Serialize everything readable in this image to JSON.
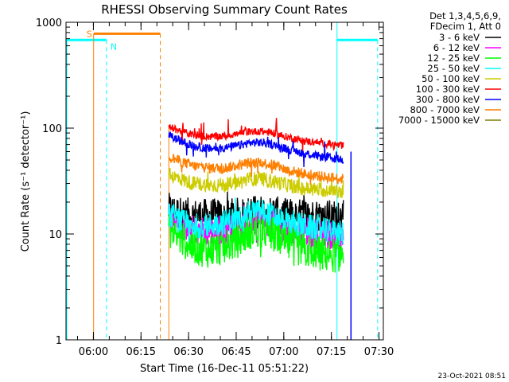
{
  "chart_data": {
    "type": "line",
    "title": "RHESSI Observing Summary Count Rates",
    "xlabel": "Start Time (16-Dec-11 05:51:22)",
    "ylabel": "Count Rate (s⁻¹ detector⁻¹)",
    "y_scale": "log",
    "ylim": [
      1,
      1000
    ],
    "xlim_minutes_after_start": [
      0,
      100
    ],
    "x_ticks": [
      {
        "label": "06:00",
        "value": 8.63
      },
      {
        "label": "06:15",
        "value": 23.63
      },
      {
        "label": "06:30",
        "value": 38.63
      },
      {
        "label": "06:45",
        "value": 53.63
      },
      {
        "label": "07:00",
        "value": 68.63
      },
      {
        "label": "07:15",
        "value": 83.63
      },
      {
        "label": "07:30",
        "value": 98.63
      }
    ],
    "y_ticks": [
      {
        "label": "1",
        "value": 1
      },
      {
        "label": "10",
        "value": 10
      },
      {
        "label": "100",
        "value": 100
      },
      {
        "label": "1000",
        "value": 1000
      }
    ],
    "legend_header": [
      "Det 1,3,4,5,6,9,",
      "FDecim 1, Att 0"
    ],
    "legend_position": "right",
    "data_x": [
      32.4,
      35,
      40,
      45,
      50,
      55,
      58,
      62,
      65,
      70,
      75,
      80,
      84,
      87.4
    ],
    "series": [
      {
        "name": "3 - 6 keV",
        "color": "#000000",
        "values": [
          17,
          16,
          15,
          15,
          15,
          15.5,
          16,
          16.5,
          16,
          15,
          15,
          15,
          14.5,
          14.5
        ],
        "noise": 0.16
      },
      {
        "name": "6 - 12 keV",
        "color": "#ff00ff",
        "values": [
          14,
          12.5,
          11,
          10.5,
          11,
          12,
          13,
          13.5,
          12.5,
          11,
          10.5,
          10,
          9.8,
          9.5
        ],
        "noise": 0.14
      },
      {
        "name": "12 - 25 keV",
        "color": "#00ff00",
        "values": [
          11,
          9.5,
          7.5,
          7,
          7.5,
          9,
          10.5,
          11,
          10,
          8,
          7,
          6.5,
          6.3,
          6.3
        ],
        "noise": 0.17
      },
      {
        "name": "25 - 50 keV",
        "color": "#00ffff",
        "values": [
          15,
          13.5,
          12,
          12,
          13,
          14.5,
          16,
          16.5,
          15,
          13,
          12,
          11,
          10.5,
          10
        ],
        "noise": 0.12
      },
      {
        "name": "50 - 100 keV",
        "color": "#cccc00",
        "values": [
          36,
          34,
          30,
          29,
          29,
          31,
          33,
          33,
          31.5,
          29,
          27,
          26,
          25,
          25
        ],
        "noise": 0.07
      },
      {
        "name": "100 - 300 keV",
        "color": "#ff0000",
        "values": [
          103,
          96,
          86,
          83,
          84,
          89,
          93,
          93,
          90,
          82,
          76,
          72,
          70,
          68
        ],
        "noise": 0.035
      },
      {
        "name": "300 - 800 keV",
        "color": "#0000ff",
        "values": [
          85,
          78,
          68,
          64,
          65,
          69,
          73,
          73,
          70,
          63,
          58,
          54,
          52,
          50
        ],
        "noise": 0.04
      },
      {
        "name": "800 - 7000 keV",
        "color": "#ff7f00",
        "values": [
          54,
          50,
          44,
          42,
          42,
          45,
          47,
          47,
          45,
          40,
          37,
          35,
          34,
          33
        ],
        "noise": 0.05
      },
      {
        "name": "7000 - 15000 keV",
        "color": "#7f7f00",
        "values": [],
        "noise": 0
      }
    ],
    "flags": {
      "N": {
        "label": "N",
        "color": "#00ffff",
        "level": 680,
        "intervals": [
          [
            0,
            12.75
          ],
          [
            85.4,
            98.2
          ]
        ],
        "boundaries": [
          12.75,
          85.4,
          98.2
        ]
      },
      "S": {
        "label": "S",
        "color": "#ff7f00",
        "level": 780,
        "intervals": [
          [
            8.7,
            29.7
          ]
        ],
        "boundaries": [
          8.7,
          29.7
        ]
      }
    },
    "data_window_end_line": {
      "value": 89.8,
      "color": "#0000ff"
    },
    "gap_end_line": {
      "value": 32.4,
      "color": "#ff7f00"
    }
  },
  "timestamp": "23-Oct-2021 08:51"
}
